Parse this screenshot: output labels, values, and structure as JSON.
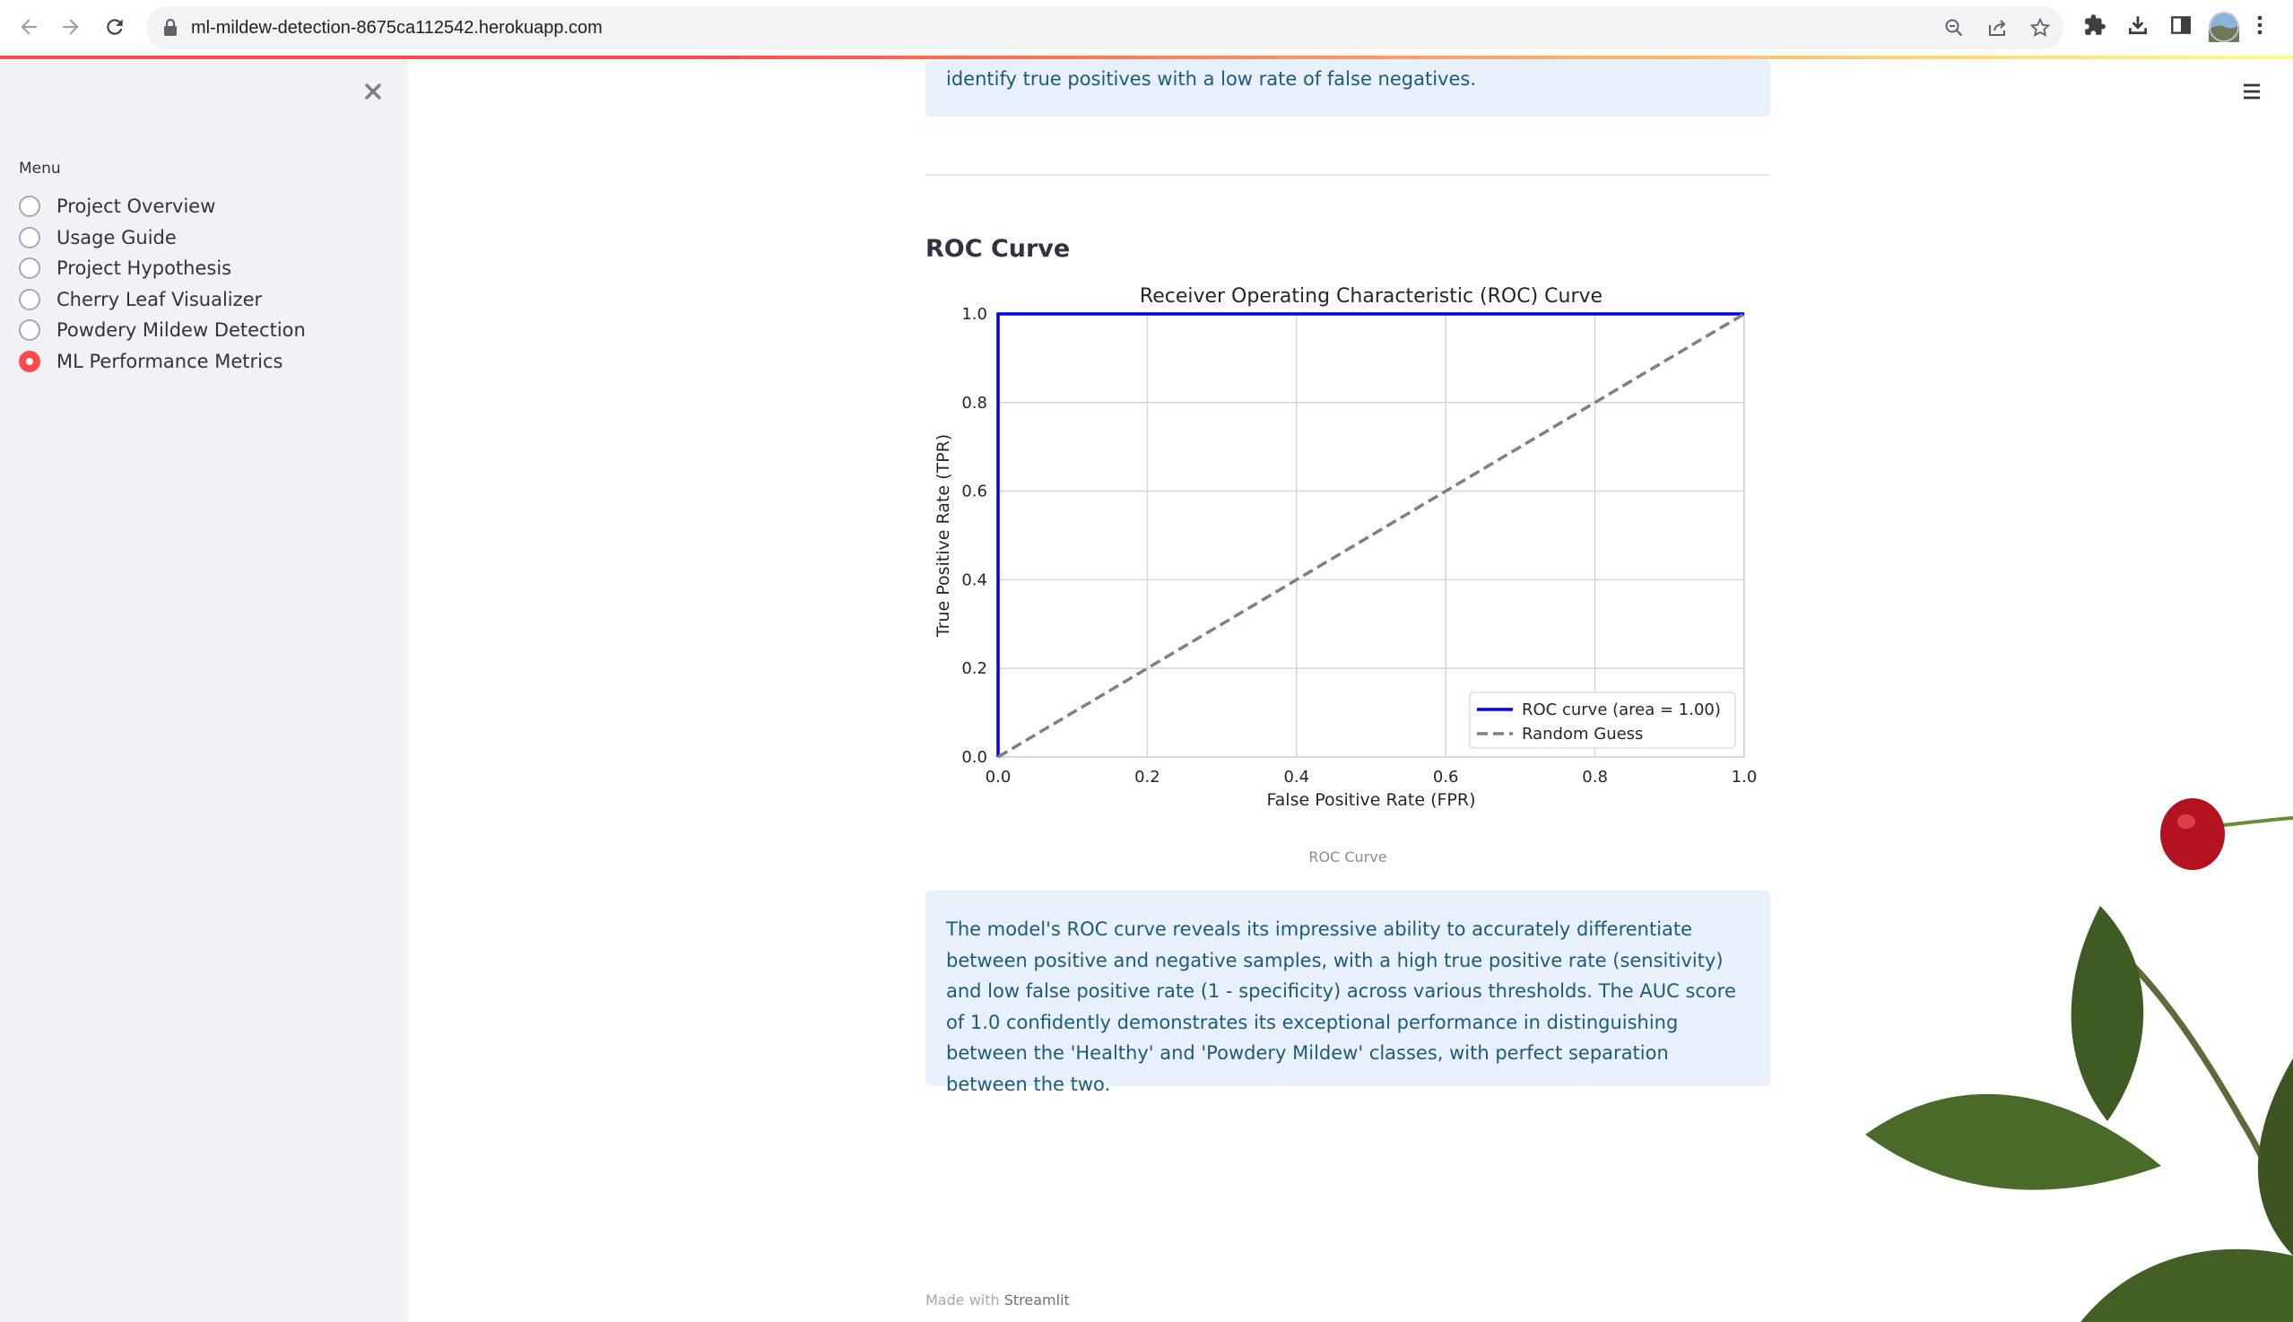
{
  "browser": {
    "url": "ml-mildew-detection-8675ca112542.herokuapp.com",
    "icons": [
      "back-icon",
      "forward-icon",
      "reload-icon",
      "lock-icon",
      "zoom-icon",
      "share-icon",
      "star-icon",
      "extensions-icon",
      "download-icon",
      "sidepanel-icon",
      "profile-avatar",
      "more-icon"
    ]
  },
  "sidebar": {
    "menu_label": "Menu",
    "items": [
      {
        "label": "Project Overview",
        "selected": false
      },
      {
        "label": "Usage Guide",
        "selected": false
      },
      {
        "label": "Project Hypothesis",
        "selected": false
      },
      {
        "label": "Cherry Leaf Visualizer",
        "selected": false
      },
      {
        "label": "Powdery Mildew Detection",
        "selected": false
      },
      {
        "label": "ML Performance Metrics",
        "selected": true
      }
    ],
    "accent": "#ff4b4b"
  },
  "main": {
    "top_info": "identify true positives with a low rate of false negatives.",
    "section_title": "ROC Curve",
    "caption": "ROC Curve",
    "bottom_info": "The model's ROC curve reveals its impressive ability to accurately differentiate between positive and negative samples, with a high true positive rate (sensitivity) and low false positive rate (1 - specificity) across various thresholds. The AUC score of 1.0 confidently demonstrates its exceptional performance in distinguishing between the 'Healthy' and 'Powdery Mildew' classes, with perfect separation between the two.",
    "footer_prefix": "Made with",
    "footer_brand": "Streamlit",
    "info_text_color": "#1d5b78",
    "info_bg_color": "#e8f1fb"
  },
  "chart_data": {
    "type": "line",
    "title": "Receiver Operating Characteristic (ROC) Curve",
    "xlabel": "False Positive Rate (FPR)",
    "ylabel": "True Positive Rate (TPR)",
    "xlim": [
      0,
      1
    ],
    "ylim": [
      0,
      1
    ],
    "xticks": [
      "0.0",
      "0.2",
      "0.4",
      "0.6",
      "0.8",
      "1.0"
    ],
    "yticks": [
      "0.0",
      "0.2",
      "0.4",
      "0.6",
      "0.8",
      "1.0"
    ],
    "grid": true,
    "legend_position": "lower-right",
    "series": [
      {
        "name": "ROC curve (area = 1.00)",
        "color": "#0000ee",
        "style": "solid",
        "x": [
          0,
          0,
          1
        ],
        "y": [
          0,
          1,
          1
        ]
      },
      {
        "name": "Random Guess",
        "color": "#808080",
        "style": "dashed",
        "x": [
          0,
          1
        ],
        "y": [
          0,
          1
        ]
      }
    ]
  }
}
